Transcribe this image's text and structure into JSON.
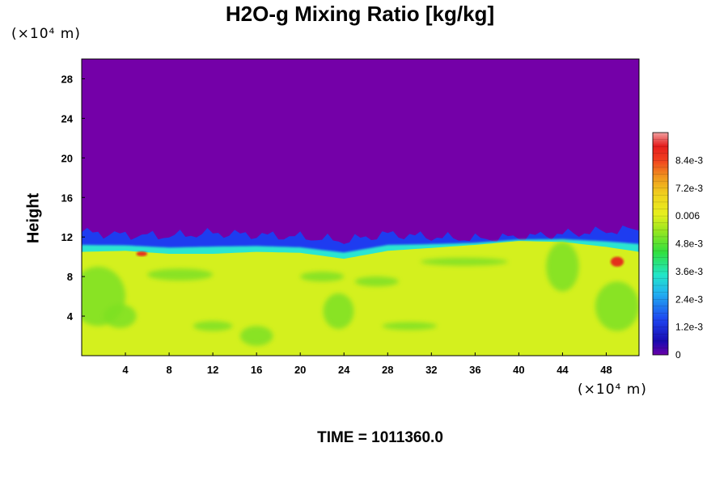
{
  "chart_data": {
    "type": "heatmap",
    "title": "H2O-g Mixing Ratio [kg/kg]",
    "ylabel": "Height",
    "y_unit": "(×10⁴ m)",
    "x_unit": "(×10⁴ m)",
    "footer": {
      "label": "TIME = ",
      "value": "1011360.0"
    },
    "x_ticks": [
      "4",
      "8",
      "12",
      "16",
      "20",
      "24",
      "28",
      "32",
      "36",
      "40",
      "44",
      "48"
    ],
    "y_ticks": [
      "4",
      "8",
      "12",
      "16",
      "20",
      "24",
      "28"
    ],
    "xlim": [
      0,
      51
    ],
    "ylim": [
      0,
      30
    ],
    "colorbar": {
      "ticks": [
        "8.4e-3",
        "7.2e-3",
        "0.006",
        "4.8e-3",
        "3.6e-3",
        "2.4e-3",
        "1.2e-3",
        "0"
      ],
      "tick_values": [
        0.0084,
        0.0072,
        0.006,
        0.0048,
        0.0036,
        0.0024,
        0.0012,
        0
      ],
      "range": [
        0,
        0.0096
      ]
    },
    "field": {
      "upper_value": 0,
      "lower_value": 0.0061,
      "interface_height": [
        [
          0,
          10.5
        ],
        [
          4,
          10.6
        ],
        [
          8,
          10.3
        ],
        [
          12,
          10.3
        ],
        [
          16,
          10.5
        ],
        [
          20,
          10.4
        ],
        [
          24,
          9.8
        ],
        [
          28,
          10.6
        ],
        [
          32,
          10.9
        ],
        [
          36,
          11.2
        ],
        [
          40,
          11.6
        ],
        [
          44,
          11.5
        ],
        [
          48,
          11.0
        ],
        [
          51,
          10.5
        ]
      ],
      "moist_edge_height": [
        [
          0,
          12.5
        ],
        [
          4,
          12.2
        ],
        [
          8,
          12.1
        ],
        [
          12,
          12.4
        ],
        [
          16,
          12.2
        ],
        [
          20,
          12.0
        ],
        [
          24,
          11.6
        ],
        [
          28,
          12.3
        ],
        [
          32,
          12.0
        ],
        [
          36,
          11.8
        ],
        [
          40,
          12.0
        ],
        [
          44,
          12.3
        ],
        [
          48,
          12.6
        ],
        [
          51,
          12.8
        ]
      ]
    },
    "colors": {
      "upper": "#7400a8",
      "lower": "#d4f01e",
      "green": "#7de025",
      "cyan": "#2ce6d0",
      "blue": "#1e3cf0",
      "red": "#e61e1e"
    }
  }
}
